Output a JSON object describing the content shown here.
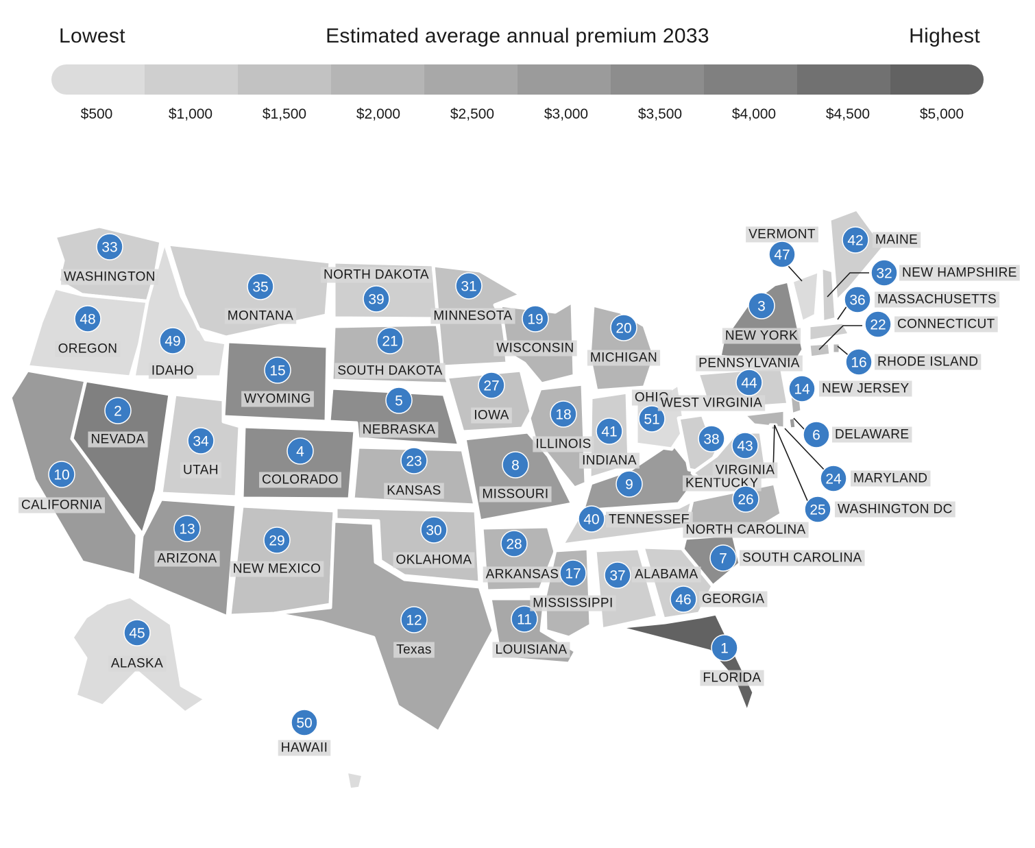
{
  "legend": {
    "low_label": "Lowest",
    "title": "Estimated average annual premium 2033",
    "high_label": "Highest",
    "ticks": [
      "$500",
      "$1,000",
      "$1,500",
      "$2,000",
      "$2,500",
      "$3,000",
      "$3,500",
      "$4,000",
      "$4,500",
      "$5,000"
    ],
    "shades": [
      "#dcdcdc",
      "#cfcfcf",
      "#c2c2c2",
      "#b5b5b5",
      "#a8a8a8",
      "#9b9b9b",
      "#8d8d8d",
      "#808080",
      "#717171",
      "#626262"
    ]
  },
  "colors": {
    "marker": "#3a7cc4",
    "border": "#ffffff",
    "label_bg": "#d8d8d8"
  },
  "states": [
    {
      "name": "WASHINGTON",
      "rank": "33",
      "shade": 1
    },
    {
      "name": "OREGON",
      "rank": "48",
      "shade": 0
    },
    {
      "name": "CALIFORNIA",
      "rank": "10",
      "shade": 5
    },
    {
      "name": "NEVADA",
      "rank": "2",
      "shade": 7
    },
    {
      "name": "IDAHO",
      "rank": "49",
      "shade": 0
    },
    {
      "name": "MONTANA",
      "rank": "35",
      "shade": 1
    },
    {
      "name": "WYOMING",
      "rank": "15",
      "shade": 6
    },
    {
      "name": "UTAH",
      "rank": "34",
      "shade": 1
    },
    {
      "name": "ARIZONA",
      "rank": "13",
      "shade": 5
    },
    {
      "name": "COLORADO",
      "rank": "4",
      "shade": 6
    },
    {
      "name": "NEW MEXICO",
      "rank": "29",
      "shade": 2
    },
    {
      "name": "NORTH DAKOTA",
      "rank": "39",
      "shade": 1
    },
    {
      "name": "SOUTH DAKOTA",
      "rank": "21",
      "shade": 3
    },
    {
      "name": "NEBRASKA",
      "rank": "5",
      "shade": 6
    },
    {
      "name": "KANSAS",
      "rank": "23",
      "shade": 3
    },
    {
      "name": "OKLAHOMA",
      "rank": "30",
      "shade": 2
    },
    {
      "name": "Texas",
      "rank": "12",
      "shade": 4
    },
    {
      "name": "MINNESOTA",
      "rank": "31",
      "shade": 2
    },
    {
      "name": "IOWA",
      "rank": "27",
      "shade": 2
    },
    {
      "name": "MISSOURI",
      "rank": "8",
      "shade": 5
    },
    {
      "name": "ARKANSAS",
      "rank": "28",
      "shade": 3
    },
    {
      "name": "LOUISIANA",
      "rank": "11",
      "shade": 4
    },
    {
      "name": "WISCONSIN",
      "rank": "19",
      "shade": 3
    },
    {
      "name": "ILLINOIS",
      "rank": "18",
      "shade": 3
    },
    {
      "name": "MISSISSIPPI",
      "rank": "17",
      "shade": 3
    },
    {
      "name": "MICHIGAN",
      "rank": "20",
      "shade": 3
    },
    {
      "name": "INDIANA",
      "rank": "41",
      "shade": 1
    },
    {
      "name": "KENTUCKY",
      "rank": "9",
      "shade": 5
    },
    {
      "name": "TENNESSEE",
      "rank": "40",
      "shade": 1
    },
    {
      "name": "ALABAMA",
      "rank": "37",
      "shade": 1
    },
    {
      "name": "OHIO",
      "rank": "51",
      "shade": 0
    },
    {
      "name": "WEST VIRGINIA",
      "rank": "38",
      "shade": 1
    },
    {
      "name": "VIRGINIA",
      "rank": "43",
      "shade": 1
    },
    {
      "name": "NORTH CAROLINA",
      "rank": "26",
      "shade": 3
    },
    {
      "name": "SOUTH CAROLINA",
      "rank": "7",
      "shade": 6
    },
    {
      "name": "GEORGIA",
      "rank": "46",
      "shade": 1
    },
    {
      "name": "FLORIDA",
      "rank": "1",
      "shade": 9
    },
    {
      "name": "PENNSYLVANIA",
      "rank": "44",
      "shade": 1
    },
    {
      "name": "NEW YORK",
      "rank": "3",
      "shade": 6
    },
    {
      "name": "VERMONT",
      "rank": "47",
      "shade": 0
    },
    {
      "name": "NEW HAMPSHIRE",
      "rank": "32",
      "shade": 1
    },
    {
      "name": "MAINE",
      "rank": "42",
      "shade": 1
    },
    {
      "name": "MASSACHUSETTS",
      "rank": "36",
      "shade": 1
    },
    {
      "name": "CONNECTICUT",
      "rank": "22",
      "shade": 2
    },
    {
      "name": "RHODE ISLAND",
      "rank": "16",
      "shade": 3
    },
    {
      "name": "NEW JERSEY",
      "rank": "14",
      "shade": 3
    },
    {
      "name": "DELAWARE",
      "rank": "6",
      "shade": 5
    },
    {
      "name": "MARYLAND",
      "rank": "24",
      "shade": 3
    },
    {
      "name": "WASHINGTON DC",
      "rank": "25",
      "shade": 3
    },
    {
      "name": "ALASKA",
      "rank": "45",
      "shade": 0
    },
    {
      "name": "HAWAII",
      "rank": "50",
      "shade": 0
    }
  ]
}
